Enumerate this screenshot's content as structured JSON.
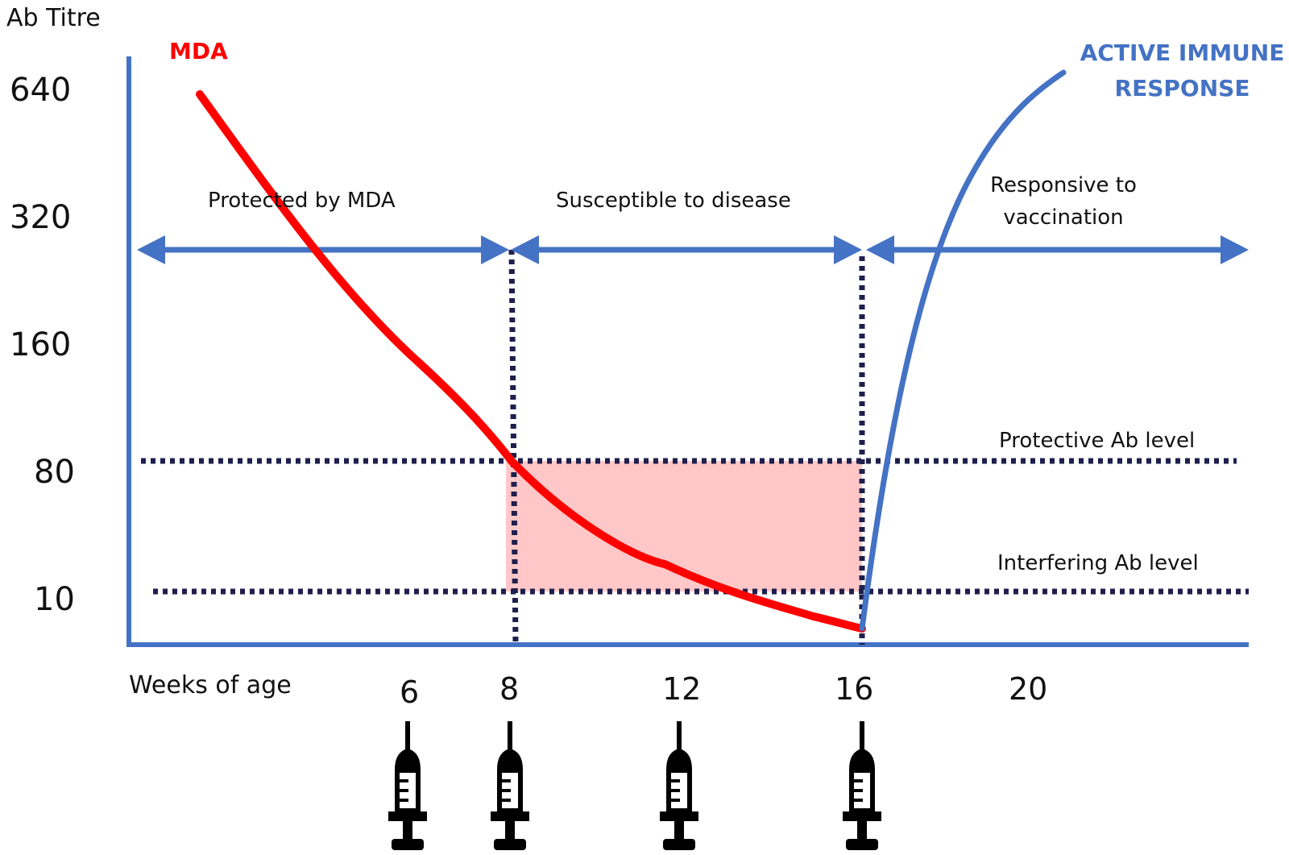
{
  "y_axis": {
    "title": "Ab Titre",
    "ticks": [
      "640",
      "320",
      "160",
      "80",
      "10"
    ]
  },
  "x_axis": {
    "title": "Weeks  of  age",
    "ticks": [
      "6",
      "8",
      "12",
      "16",
      "20"
    ]
  },
  "curves": {
    "mda_label": "MDA",
    "mda_color": "#ff0000",
    "active_label_line1": "ACTIVE IMMUNE",
    "active_label_line2": "RESPONSE",
    "active_color": "#4472c4"
  },
  "regions": {
    "protected": "Protected  by MDA",
    "susceptible": "Susceptible to disease",
    "responsive_line1": "Responsive to",
    "responsive_line2": "vaccination"
  },
  "levels": {
    "protective": "Protective Ab level",
    "interfering": "Interfering Ab level"
  },
  "vaccinations": {
    "weeks": [
      "6",
      "8",
      "12",
      "16"
    ],
    "icon": "syringe-icon"
  },
  "colors": {
    "axis": "#4472c4",
    "arrow": "#4472c4",
    "dotted": "#1f1f4d",
    "susceptible_fill": "#ffc7c7"
  }
}
